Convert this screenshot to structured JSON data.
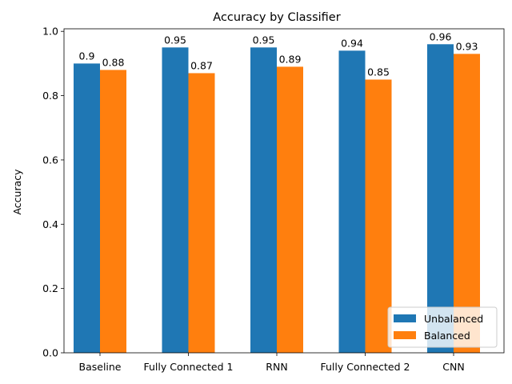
{
  "chart_data": {
    "type": "bar",
    "title": "Accuracy by Classifier",
    "xlabel": "",
    "ylabel": "Accuracy",
    "ylim": [
      0,
      1.008
    ],
    "yticks": [
      0.0,
      0.2,
      0.4,
      0.6,
      0.8,
      1.0
    ],
    "ytick_labels": [
      "0.0",
      "0.2",
      "0.4",
      "0.6",
      "0.8",
      "1.0"
    ],
    "categories": [
      "Baseline",
      "Fully Connected 1",
      "RNN",
      "Fully Connected 2",
      "CNN"
    ],
    "series": [
      {
        "name": "Unbalanced",
        "color": "#1f77b4",
        "values": [
          0.9,
          0.95,
          0.95,
          0.94,
          0.96
        ],
        "labels": [
          "0.9",
          "0.95",
          "0.95",
          "0.94",
          "0.96"
        ]
      },
      {
        "name": "Balanced",
        "color": "#ff7f0e",
        "values": [
          0.88,
          0.87,
          0.89,
          0.85,
          0.93
        ],
        "labels": [
          "0.88",
          "0.87",
          "0.89",
          "0.85",
          "0.93"
        ]
      }
    ],
    "legend_position": "bottom-right",
    "grid": false
  }
}
